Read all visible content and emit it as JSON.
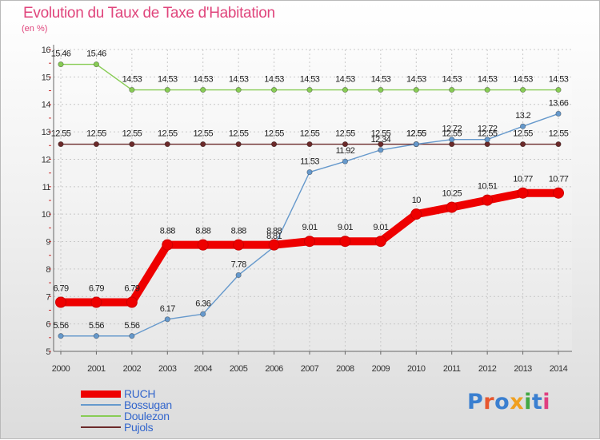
{
  "title": "Evolution du Taux de Taxe d'Habitation",
  "unit_label": "(en %)",
  "logo": {
    "text": "Proxiti",
    "colors": [
      "#3a7fd0",
      "#e8572e",
      "#3a7fd0",
      "#f0a020",
      "#43a843",
      "#3a7fd0",
      "#e04080"
    ]
  },
  "chart_data": {
    "type": "line",
    "title": "Evolution du Taux de Taxe d'Habitation",
    "ylabel": "(en %)",
    "xlabel": "",
    "x": [
      "2000",
      "2001",
      "2002",
      "2003",
      "2004",
      "2005",
      "2006",
      "2007",
      "2008",
      "2009",
      "2010",
      "2011",
      "2012",
      "2013",
      "2014"
    ],
    "ylim": [
      5,
      16
    ],
    "yticks": [
      5,
      6,
      7,
      8,
      9,
      10,
      11,
      12,
      13,
      14,
      15,
      16
    ],
    "grid": true,
    "legend_position": "bottom-left",
    "series": [
      {
        "name": "RUCH",
        "color": "#ee0000",
        "values": [
          6.79,
          6.79,
          6.79,
          8.88,
          8.88,
          8.88,
          8.88,
          9.01,
          9.01,
          9.01,
          10,
          10.25,
          10.51,
          10.77,
          10.77
        ],
        "labels": [
          "6.79",
          "6.79",
          "6.79",
          "8.88",
          "8.88",
          "8.88",
          "8.88",
          "9.01",
          "9.01",
          "9.01",
          "10",
          "10.25",
          "10.51",
          "10.77",
          "10.77"
        ]
      },
      {
        "name": "Bossugan",
        "color": "#6699cc",
        "values": [
          5.56,
          5.56,
          5.56,
          6.17,
          6.36,
          7.78,
          8.81,
          11.53,
          11.92,
          12.34,
          12.55,
          12.72,
          12.72,
          13.2,
          13.66
        ],
        "labels": [
          "5.56",
          "5.56",
          "5.56",
          "6.17",
          "6.36",
          "7.78",
          "8.81",
          "11.53",
          "11.92",
          "12.34",
          "12.55",
          "12.72",
          "12.72",
          "13.2",
          "13.66"
        ]
      },
      {
        "name": "Doulezon",
        "color": "#88cc55",
        "values": [
          15.46,
          15.46,
          14.53,
          14.53,
          14.53,
          14.53,
          14.53,
          14.53,
          14.53,
          14.53,
          14.53,
          14.53,
          14.53,
          14.53,
          14.53
        ],
        "labels": [
          "15.46",
          "15.46",
          "14.53",
          "14.53",
          "14.53",
          "14.53",
          "14.53",
          "14.53",
          "14.53",
          "14.53",
          "14.53",
          "14.53",
          "14.53",
          "14.53",
          "14.53"
        ]
      },
      {
        "name": "Pujols",
        "color": "#6b2a2a",
        "values": [
          12.55,
          12.55,
          12.55,
          12.55,
          12.55,
          12.55,
          12.55,
          12.55,
          12.55,
          12.55,
          12.55,
          12.55,
          12.55,
          12.55,
          12.55
        ],
        "labels": [
          "12.55",
          "12.55",
          "12.55",
          "12.55",
          "12.55",
          "12.55",
          "12.55",
          "12.55",
          "12.55",
          "12.55",
          "12.55",
          "12.55",
          "12.55",
          "12.55",
          "12.55"
        ]
      }
    ]
  }
}
